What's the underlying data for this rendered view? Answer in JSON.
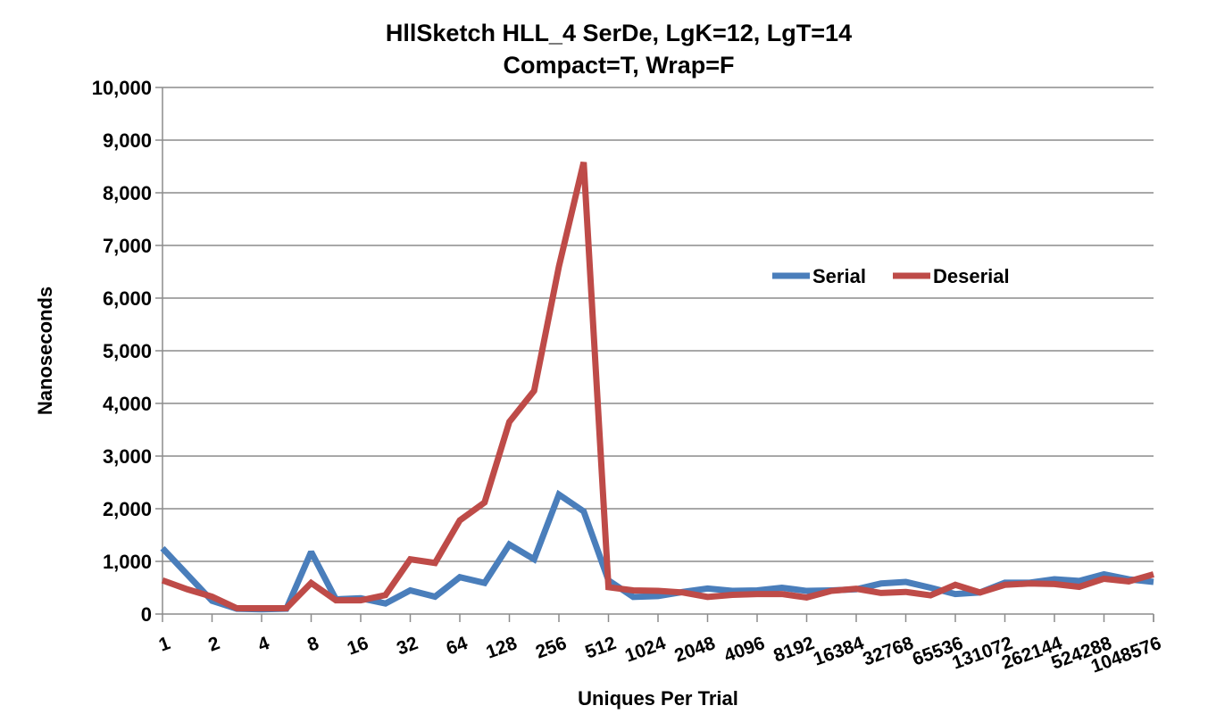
{
  "chart_data": {
    "type": "line",
    "title": [
      "HllSketch HLL_4 SerDe, LgK=12, LgT=14",
      "Compact=T, Wrap=F"
    ],
    "xlabel": "Uniques Per Trial",
    "ylabel": "Nanoseconds",
    "ylim": [
      0,
      10000
    ],
    "yticks": [
      "0",
      "1,000",
      "2,000",
      "3,000",
      "4,000",
      "5,000",
      "6,000",
      "7,000",
      "8,000",
      "9,000",
      "10,000"
    ],
    "xtick_labels": [
      "1",
      "2",
      "4",
      "8",
      "16",
      "32",
      "64",
      "128",
      "256",
      "512",
      "1024",
      "2048",
      "4096",
      "8192",
      "16384",
      "32768",
      "65536",
      "131072",
      "262144",
      "524288",
      "1048576"
    ],
    "point_count": 41,
    "grid": true,
    "legend_position": "center-right",
    "series": [
      {
        "name": "Serial",
        "color": "#4a7ebb",
        "values": [
          1250,
          750,
          250,
          100,
          90,
          100,
          1180,
          280,
          300,
          200,
          450,
          330,
          700,
          590,
          1320,
          1040,
          2270,
          1950,
          640,
          325,
          340,
          420,
          485,
          440,
          450,
          500,
          440,
          450,
          470,
          580,
          610,
          500,
          380,
          410,
          595,
          595,
          660,
          630,
          755,
          660,
          610
        ]
      },
      {
        "name": "Deserial",
        "color": "#be4b48",
        "values": [
          640,
          470,
          330,
          110,
          110,
          110,
          590,
          260,
          260,
          360,
          1040,
          970,
          1780,
          2120,
          3650,
          4240,
          6600,
          8580,
          510,
          450,
          440,
          410,
          325,
          365,
          380,
          380,
          315,
          440,
          480,
          400,
          420,
          355,
          555,
          410,
          555,
          580,
          570,
          515,
          670,
          620,
          755
        ]
      }
    ]
  }
}
